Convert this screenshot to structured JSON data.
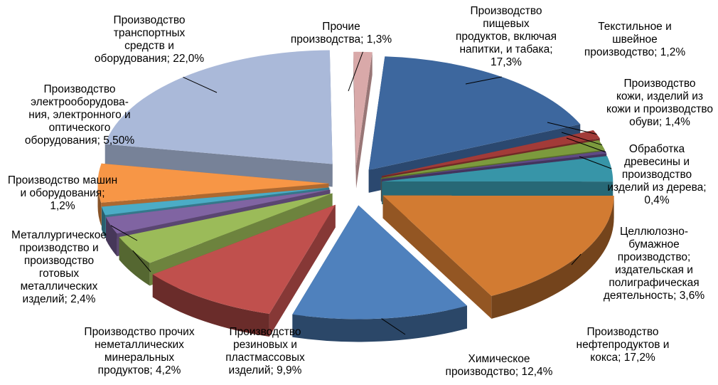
{
  "chart_data": {
    "type": "pie",
    "title": "",
    "style": "3d-exploded",
    "legend": "none",
    "slices": [
      {
        "label_lines": [
          "Производство",
          "пищевых",
          "продуктов, включая",
          "напитки, и табака;",
          "17,3%"
        ],
        "value": 17.3,
        "color": "#3d679e"
      },
      {
        "label_lines": [
          "Текстильное и",
          "швейное",
          "производство; 1,2%"
        ],
        "value": 1.2,
        "color": "#a23b38"
      },
      {
        "label_lines": [
          "Производство",
          "кожи, изделий из",
          "кожи и производство",
          "обуви; 1,4%"
        ],
        "value": 1.4,
        "color": "#7c9a3d"
      },
      {
        "label_lines": [
          "Обработка",
          "древесины и",
          "производство",
          "изделий из дерева;",
          "0,4%"
        ],
        "value": 0.4,
        "color": "#5f4a85"
      },
      {
        "label_lines": [
          "Целлюлозно-",
          "бумажное",
          "производство;",
          "издательская и",
          "полиграфическая",
          "деятельность; 3,6%"
        ],
        "value": 3.6,
        "color": "#3795a8"
      },
      {
        "label_lines": [
          "Производство",
          "нефтепродуктов и",
          "кокса; 17,2%"
        ],
        "value": 17.2,
        "color": "#d27b32"
      },
      {
        "label_lines": [
          "Химическое",
          "производство; 12,4%"
        ],
        "value": 12.4,
        "color": "#4f81bd"
      },
      {
        "label_lines": [
          "Производство",
          "резиновых и",
          "пластмассовых",
          "изделий; 9,9%"
        ],
        "value": 9.9,
        "color": "#c0504d"
      },
      {
        "label_lines": [
          "Производство прочих",
          "неметаллических",
          "минеральных",
          "продуктов; 4,2%"
        ],
        "value": 4.2,
        "color": "#9bbb59"
      },
      {
        "label_lines": [
          "Металлургическое",
          "производство и",
          "производство",
          "готовых",
          "металлических",
          "изделий; 2,4%"
        ],
        "value": 2.4,
        "color": "#8064a2"
      },
      {
        "label_lines": [
          "Производство машин",
          "и оборудования;",
          "1,2%"
        ],
        "value": 1.2,
        "color": "#4bacc6"
      },
      {
        "label_lines": [
          "Производство",
          "электрооборудова-",
          "ния, электронного и",
          "оптического",
          "оборудования; 5,50%"
        ],
        "value": 5.5,
        "color": "#f79646"
      },
      {
        "label_lines": [
          "Производство",
          "транспортных",
          "средств и",
          "оборудования; 22,0%"
        ],
        "value": 22.0,
        "color": "#aab9d9"
      },
      {
        "label_lines": [
          "Прочие",
          "производства; 1,3%"
        ],
        "value": 1.3,
        "color": "#d9a9a9"
      }
    ]
  }
}
